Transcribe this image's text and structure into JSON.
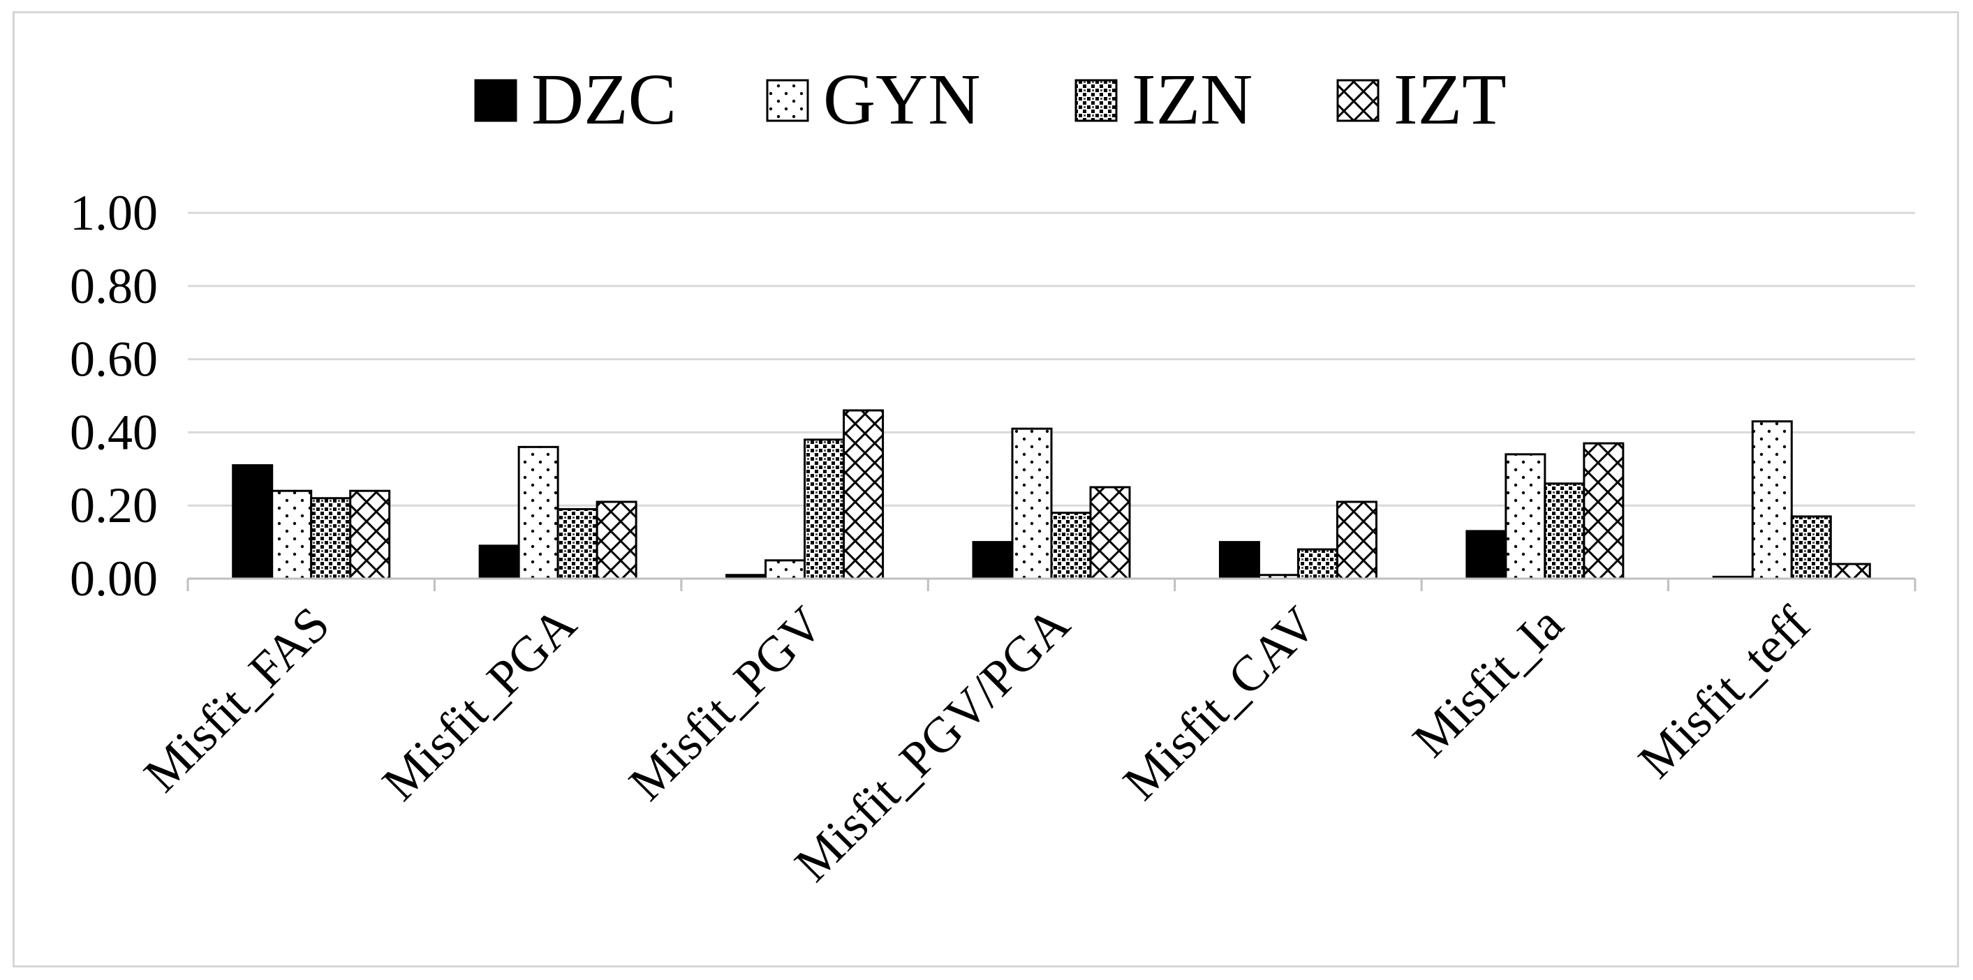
{
  "chart_data": {
    "type": "bar",
    "title": "",
    "xlabel": "",
    "ylabel": "",
    "ylim": [
      0,
      1
    ],
    "yticks": [
      "0.00",
      "0.20",
      "0.40",
      "0.60",
      "0.80",
      "1.00"
    ],
    "grid": true,
    "legend_position": "top",
    "categories": [
      "Misfit_FAS",
      "Misfit_PGA",
      "Misfit_PGV",
      "Misfit_PGV/PGA",
      "Misfit_CAV",
      "Misfit_Ia",
      "Misfit_teff"
    ],
    "series": [
      {
        "name": "DZC",
        "pattern": "solid",
        "values": [
          0.31,
          0.09,
          0.01,
          0.1,
          0.1,
          0.13,
          0.005
        ]
      },
      {
        "name": "GYN",
        "pattern": "dots",
        "values": [
          0.24,
          0.36,
          0.05,
          0.41,
          0.01,
          0.34,
          0.43
        ]
      },
      {
        "name": "IZN",
        "pattern": "dense-check",
        "values": [
          0.22,
          0.19,
          0.38,
          0.18,
          0.08,
          0.26,
          0.17
        ]
      },
      {
        "name": "IZT",
        "pattern": "crosshatch",
        "values": [
          0.24,
          0.21,
          0.46,
          0.25,
          0.21,
          0.37,
          0.04
        ]
      }
    ]
  },
  "colors": {
    "bar_stroke": "#000000",
    "grid": "#d9d9d9",
    "axis": "#bfbfbf",
    "text": "#000000"
  }
}
